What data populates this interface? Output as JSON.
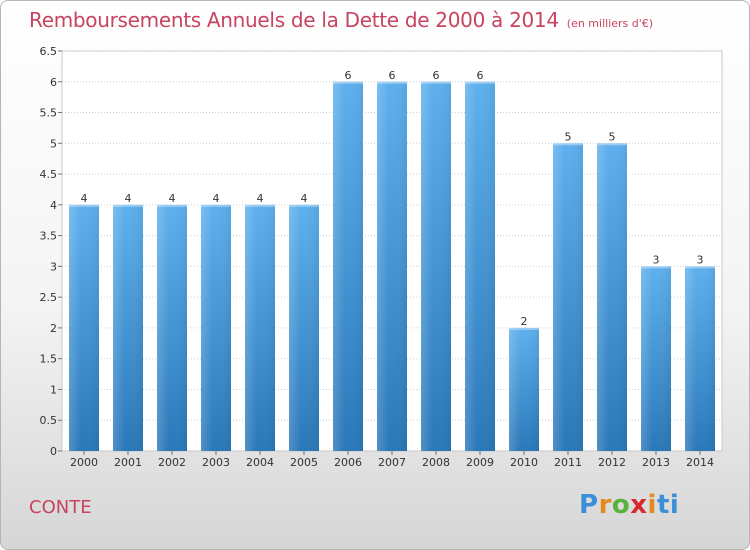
{
  "header": {
    "title": "Remboursements Annuels de la Dette de 2000 à 2014",
    "unit": "(en milliers d'€)"
  },
  "footer": {
    "town": "CONTE",
    "logo": [
      "P",
      "r",
      "o",
      "x",
      "i",
      "ti"
    ]
  },
  "colors": {
    "bar_top": "#5eb0ee",
    "bar_bottom": "#2a78b8",
    "title": "#c8435f",
    "grid": "#cfcfcf"
  },
  "chart_data": {
    "type": "bar",
    "title": "Remboursements Annuels de la Dette de 2000 à 2014",
    "xlabel": "",
    "ylabel": "",
    "categories": [
      "2000",
      "2001",
      "2002",
      "2003",
      "2004",
      "2005",
      "2006",
      "2007",
      "2008",
      "2009",
      "2010",
      "2011",
      "2012",
      "2013",
      "2014"
    ],
    "values": [
      4,
      4,
      4,
      4,
      4,
      4,
      6,
      6,
      6,
      6,
      2,
      5,
      5,
      3,
      3
    ],
    "ylim": [
      0,
      6.5
    ],
    "yticks": [
      "0",
      "0.5",
      "1",
      "1.5",
      "2",
      "2.5",
      "3",
      "3.5",
      "4",
      "4.5",
      "5",
      "5.5",
      "6",
      "6.5"
    ],
    "grid": true,
    "legend": "none"
  }
}
